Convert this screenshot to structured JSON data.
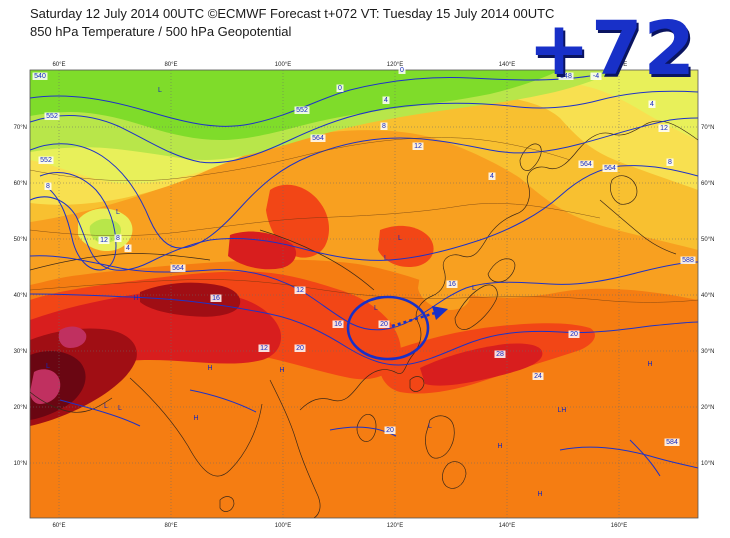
{
  "header": {
    "line1": "Saturday 12 July 2014 00UTC ©ECMWF Forecast t+072 VT: Tuesday 15 July 2014 00UTC",
    "line2": "850 hPa Temperature / 500 hPa Geopotential"
  },
  "forecast_hour_badge": "+72",
  "axes": {
    "lon_ticks": [
      "60°E",
      "80°E",
      "100°E",
      "120°E",
      "140°E",
      "160°E"
    ],
    "lat_ticks": [
      "70°N",
      "60°N",
      "50°N",
      "40°N",
      "30°N",
      "20°N",
      "10°N"
    ]
  },
  "contour_labels": [
    "540",
    "552",
    "0",
    "4",
    "552",
    "564",
    "12",
    "8",
    "548",
    "564",
    "4",
    "8",
    "12",
    "4",
    "564",
    "0",
    "-4",
    "552",
    "8",
    "12",
    "4",
    "564",
    "12",
    "16",
    "20",
    "16",
    "20",
    "16",
    "12",
    "20",
    "28",
    "24",
    "20",
    "584",
    "588",
    "8"
  ],
  "pressure_labels": [
    "H",
    "H",
    "H",
    "H",
    "L",
    "L",
    "L",
    "L",
    "L",
    "L",
    "L",
    "L",
    "L",
    "LH",
    "H",
    "H",
    "L",
    "H"
  ],
  "colors": {
    "temperature_bands": [
      "#7fdc2a",
      "#b8e64a",
      "#e8f05a",
      "#f8e050",
      "#f8c030",
      "#f8a020",
      "#f57d12",
      "#f24616",
      "#d81e1e",
      "#a00e14",
      "#6a0612",
      "#c03060"
    ],
    "contour_line": "#1e32c8",
    "coastline": "#3c2818",
    "highlight_circle": "#1830c8",
    "badge": "#1830c8"
  }
}
